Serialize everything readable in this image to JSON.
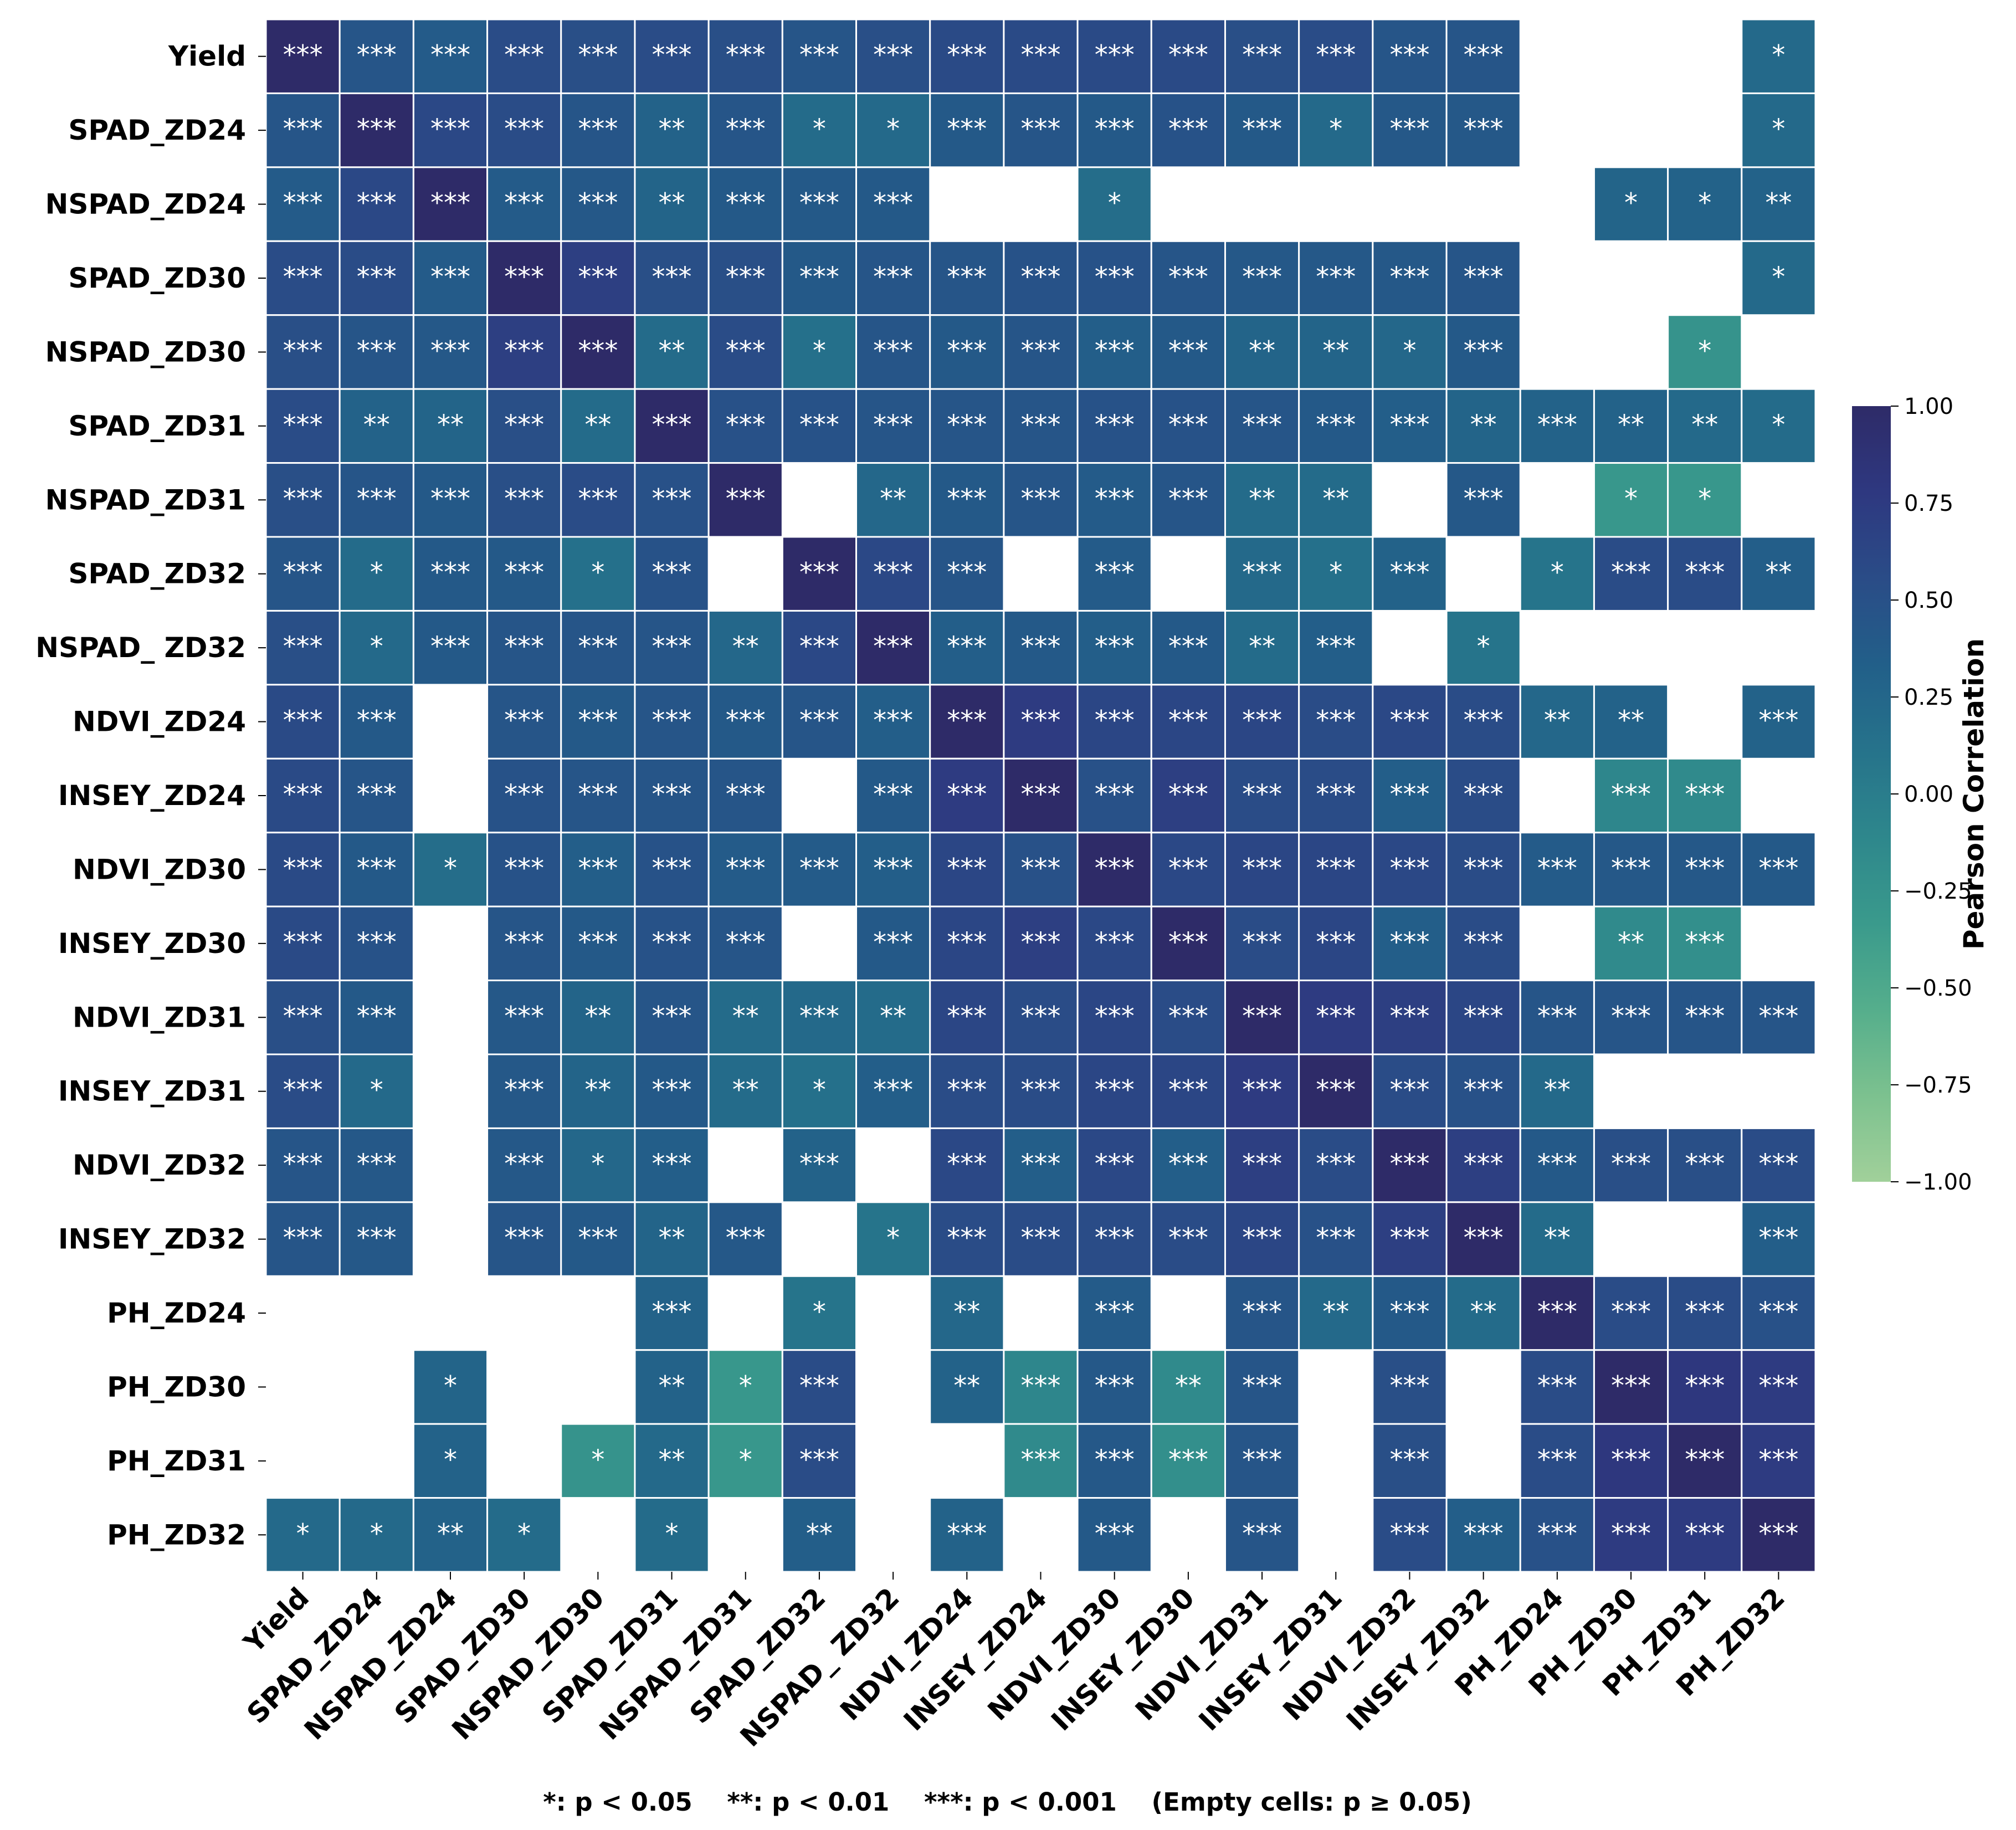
{
  "chart_data": {
    "type": "heatmap",
    "title": "",
    "xlabel": "",
    "ylabel": "",
    "labels": [
      "Yield",
      "SPAD_ZD24",
      "NSPAD_ZD24",
      "SPAD_ZD30",
      "NSPAD_ZD30",
      "SPAD_ZD31",
      "NSPAD_ZD31",
      "SPAD_ZD32",
      "NSPAD_ ZD32",
      "NDVI_ZD24",
      "INSEY_ZD24",
      "NDVI_ZD30",
      "INSEY_ZD30",
      "NDVI_ZD31",
      "INSEY_ZD31",
      "NDVI_ZD32",
      "INSEY_ZD32",
      "PH_ZD24",
      "PH_ZD30",
      "PH_ZD31",
      "PH_ZD32"
    ],
    "values": [
      [
        1.0,
        0.45,
        0.38,
        0.55,
        0.52,
        0.55,
        0.52,
        0.45,
        0.52,
        0.58,
        0.58,
        0.58,
        0.58,
        0.52,
        0.55,
        0.45,
        0.45,
        null,
        null,
        null,
        0.22
      ],
      [
        0.45,
        1.0,
        0.6,
        0.55,
        0.45,
        0.3,
        0.45,
        0.2,
        0.22,
        0.4,
        0.45,
        0.4,
        0.48,
        0.4,
        0.22,
        0.42,
        0.42,
        null,
        null,
        null,
        0.22
      ],
      [
        0.38,
        0.6,
        1.0,
        0.38,
        0.42,
        0.28,
        0.4,
        0.4,
        0.4,
        null,
        null,
        0.18,
        null,
        null,
        null,
        null,
        null,
        null,
        0.28,
        0.3,
        0.3
      ],
      [
        0.55,
        0.55,
        0.38,
        1.0,
        0.7,
        0.52,
        0.52,
        0.4,
        0.45,
        0.45,
        0.48,
        0.48,
        0.45,
        0.42,
        0.42,
        0.42,
        0.45,
        null,
        null,
        null,
        0.22
      ],
      [
        0.52,
        0.45,
        0.42,
        0.7,
        1.0,
        0.2,
        0.55,
        0.15,
        0.45,
        0.4,
        0.45,
        0.35,
        0.4,
        0.28,
        0.28,
        0.25,
        0.4,
        null,
        null,
        -0.25,
        null
      ],
      [
        0.55,
        0.3,
        0.28,
        0.52,
        0.2,
        1.0,
        0.5,
        0.48,
        0.45,
        0.45,
        0.45,
        0.48,
        0.48,
        0.45,
        0.4,
        0.35,
        0.28,
        0.3,
        0.3,
        0.22,
        0.2
      ],
      [
        0.52,
        0.45,
        0.4,
        0.52,
        0.55,
        0.5,
        1.0,
        null,
        0.25,
        0.4,
        0.45,
        0.38,
        0.45,
        0.2,
        0.2,
        null,
        0.42,
        null,
        -0.3,
        -0.3,
        null
      ],
      [
        0.45,
        0.2,
        0.4,
        0.4,
        0.15,
        0.48,
        null,
        1.0,
        0.6,
        0.45,
        null,
        0.38,
        null,
        0.22,
        0.15,
        0.3,
        null,
        0.1,
        0.55,
        0.55,
        0.35
      ],
      [
        0.52,
        0.22,
        0.4,
        0.45,
        0.45,
        0.45,
        0.25,
        0.6,
        1.0,
        0.35,
        0.4,
        0.35,
        0.4,
        0.2,
        0.35,
        null,
        0.1,
        null,
        null,
        null,
        null
      ],
      [
        0.58,
        0.4,
        null,
        0.45,
        0.4,
        0.45,
        0.4,
        0.45,
        0.35,
        1.0,
        0.75,
        0.62,
        0.62,
        0.62,
        0.55,
        0.6,
        0.55,
        0.25,
        0.3,
        null,
        0.3
      ],
      [
        0.58,
        0.45,
        null,
        0.48,
        0.45,
        0.45,
        0.45,
        null,
        0.4,
        0.75,
        1.0,
        0.5,
        0.7,
        0.55,
        0.55,
        0.35,
        0.55,
        null,
        -0.1,
        -0.15,
        null
      ],
      [
        0.58,
        0.4,
        0.18,
        0.48,
        0.35,
        0.48,
        0.38,
        0.38,
        0.35,
        0.62,
        0.5,
        1.0,
        0.6,
        0.62,
        0.62,
        0.6,
        0.55,
        0.38,
        0.42,
        0.42,
        0.4
      ],
      [
        0.58,
        0.48,
        null,
        0.45,
        0.4,
        0.48,
        0.45,
        null,
        0.4,
        0.62,
        0.7,
        0.6,
        1.0,
        0.55,
        0.62,
        0.35,
        0.55,
        null,
        -0.15,
        -0.2,
        null
      ],
      [
        0.52,
        0.4,
        null,
        0.42,
        0.28,
        0.45,
        0.2,
        0.22,
        0.2,
        0.62,
        0.55,
        0.62,
        0.55,
        1.0,
        0.75,
        0.7,
        0.62,
        0.45,
        0.45,
        0.45,
        0.45
      ],
      [
        0.55,
        0.22,
        null,
        0.42,
        0.28,
        0.4,
        0.2,
        0.15,
        0.35,
        0.55,
        0.55,
        0.62,
        0.62,
        0.75,
        1.0,
        0.55,
        0.5,
        0.22,
        null,
        null,
        null
      ],
      [
        0.45,
        0.42,
        null,
        0.42,
        0.25,
        0.35,
        null,
        0.3,
        null,
        0.6,
        0.35,
        0.6,
        0.35,
        0.7,
        0.55,
        1.0,
        0.7,
        0.4,
        0.52,
        0.52,
        0.55
      ],
      [
        0.45,
        0.42,
        null,
        0.45,
        0.4,
        0.28,
        0.42,
        null,
        0.1,
        0.55,
        0.55,
        0.55,
        0.55,
        0.62,
        0.5,
        0.7,
        1.0,
        0.2,
        null,
        null,
        0.35
      ],
      [
        null,
        null,
        null,
        null,
        null,
        0.3,
        null,
        0.1,
        null,
        0.25,
        null,
        0.38,
        null,
        0.45,
        0.22,
        0.4,
        0.2,
        1.0,
        0.55,
        0.55,
        0.5
      ],
      [
        null,
        null,
        0.28,
        null,
        null,
        0.3,
        -0.3,
        0.55,
        null,
        0.3,
        -0.1,
        0.42,
        -0.15,
        0.45,
        null,
        0.52,
        null,
        0.55,
        1.0,
        0.8,
        0.75
      ],
      [
        null,
        null,
        0.3,
        null,
        -0.25,
        0.22,
        -0.3,
        0.55,
        null,
        null,
        -0.15,
        0.42,
        -0.2,
        0.45,
        null,
        0.52,
        null,
        0.55,
        0.8,
        1.0,
        0.75
      ],
      [
        0.22,
        0.22,
        0.3,
        0.2,
        null,
        0.2,
        null,
        0.35,
        null,
        0.3,
        null,
        0.4,
        null,
        0.45,
        null,
        0.55,
        0.35,
        0.5,
        0.75,
        0.75,
        1.0
      ]
    ],
    "significance": [
      [
        "***",
        "***",
        "***",
        "***",
        "***",
        "***",
        "***",
        "***",
        "***",
        "***",
        "***",
        "***",
        "***",
        "***",
        "***",
        "***",
        "***",
        "",
        "",
        "",
        "*"
      ],
      [
        "***",
        "***",
        "***",
        "***",
        "***",
        "**",
        "***",
        "*",
        "*",
        "***",
        "***",
        "***",
        "***",
        "***",
        "*",
        "***",
        "***",
        "",
        "",
        "",
        "*"
      ],
      [
        "***",
        "***",
        "***",
        "***",
        "***",
        "**",
        "***",
        "***",
        "***",
        "",
        "",
        "*",
        "",
        "",
        "",
        "",
        "",
        "",
        "*",
        "*",
        "**"
      ],
      [
        "***",
        "***",
        "***",
        "***",
        "***",
        "***",
        "***",
        "***",
        "***",
        "***",
        "***",
        "***",
        "***",
        "***",
        "***",
        "***",
        "***",
        "",
        "",
        "",
        "*"
      ],
      [
        "***",
        "***",
        "***",
        "***",
        "***",
        "**",
        "***",
        "*",
        "***",
        "***",
        "***",
        "***",
        "***",
        "**",
        "**",
        "*",
        "***",
        "",
        "",
        "*",
        ""
      ],
      [
        "***",
        "**",
        "**",
        "***",
        "**",
        "***",
        "***",
        "***",
        "***",
        "***",
        "***",
        "***",
        "***",
        "***",
        "***",
        "***",
        "**",
        "***",
        "**",
        "**",
        "*"
      ],
      [
        "***",
        "***",
        "***",
        "***",
        "***",
        "***",
        "***",
        "",
        "**",
        "***",
        "***",
        "***",
        "***",
        "**",
        "**",
        "",
        "***",
        "",
        "*",
        "*",
        ""
      ],
      [
        "***",
        "*",
        "***",
        "***",
        "*",
        "***",
        "",
        "***",
        "***",
        "***",
        "",
        "***",
        "",
        "***",
        "*",
        "***",
        "",
        "*",
        "***",
        "***",
        "**"
      ],
      [
        "***",
        "*",
        "***",
        "***",
        "***",
        "***",
        "**",
        "***",
        "***",
        "***",
        "***",
        "***",
        "***",
        "**",
        "***",
        "",
        "*",
        "",
        "",
        "",
        ""
      ],
      [
        "***",
        "***",
        "",
        "***",
        "***",
        "***",
        "***",
        "***",
        "***",
        "***",
        "***",
        "***",
        "***",
        "***",
        "***",
        "***",
        "***",
        "**",
        "**",
        "",
        "***"
      ],
      [
        "***",
        "***",
        "",
        "***",
        "***",
        "***",
        "***",
        "",
        "***",
        "***",
        "***",
        "***",
        "***",
        "***",
        "***",
        "***",
        "***",
        "",
        "***",
        "***",
        ""
      ],
      [
        "***",
        "***",
        "*",
        "***",
        "***",
        "***",
        "***",
        "***",
        "***",
        "***",
        "***",
        "***",
        "***",
        "***",
        "***",
        "***",
        "***",
        "***",
        "***",
        "***",
        "***"
      ],
      [
        "***",
        "***",
        "",
        "***",
        "***",
        "***",
        "***",
        "",
        "***",
        "***",
        "***",
        "***",
        "***",
        "***",
        "***",
        "***",
        "***",
        "",
        "**",
        "***",
        ""
      ],
      [
        "***",
        "***",
        "",
        "***",
        "**",
        "***",
        "**",
        "***",
        "**",
        "***",
        "***",
        "***",
        "***",
        "***",
        "***",
        "***",
        "***",
        "***",
        "***",
        "***",
        "***"
      ],
      [
        "***",
        "*",
        "",
        "***",
        "**",
        "***",
        "**",
        "*",
        "***",
        "***",
        "***",
        "***",
        "***",
        "***",
        "***",
        "***",
        "***",
        "**",
        "",
        "",
        ""
      ],
      [
        "***",
        "***",
        "",
        "***",
        "*",
        "***",
        "",
        "***",
        "",
        "***",
        "***",
        "***",
        "***",
        "***",
        "***",
        "***",
        "***",
        "***",
        "***",
        "***",
        "***"
      ],
      [
        "***",
        "***",
        "",
        "***",
        "***",
        "**",
        "***",
        "",
        "*",
        "***",
        "***",
        "***",
        "***",
        "***",
        "***",
        "***",
        "***",
        "**",
        "",
        "",
        "***"
      ],
      [
        "",
        "",
        "",
        "",
        "",
        "***",
        "",
        "*",
        "",
        "**",
        "",
        "***",
        "",
        "***",
        "**",
        "***",
        "**",
        "***",
        "***",
        "***",
        "***"
      ],
      [
        "",
        "",
        "*",
        "",
        "",
        "**",
        "*",
        "***",
        "",
        "**",
        "***",
        "***",
        "**",
        "***",
        "",
        "***",
        "",
        "***",
        "***",
        "***",
        "***"
      ],
      [
        "",
        "",
        "*",
        "",
        "*",
        "**",
        "*",
        "***",
        "",
        "",
        "***",
        "***",
        "***",
        "***",
        "",
        "***",
        "",
        "***",
        "***",
        "***",
        "***"
      ],
      [
        "*",
        "*",
        "**",
        "*",
        "",
        "*",
        "",
        "**",
        "",
        "***",
        "",
        "***",
        "",
        "***",
        "",
        "***",
        "***",
        "***",
        "***",
        "***",
        "***"
      ]
    ],
    "colorbar": {
      "label": "Pearson Correlation",
      "min": -1.0,
      "max": 1.0,
      "ticks": [
        "1.00",
        "0.75",
        "0.50",
        "0.25",
        "0.00",
        "−0.25",
        "−0.50",
        "−0.75",
        "−1.00"
      ],
      "colormap": [
        "#a1d09a",
        "#7cc18f",
        "#55ae8c",
        "#3a9a8c",
        "#2e878c",
        "#26738b",
        "#225f89",
        "#2a4c87",
        "#2e3880",
        "#2e2b68"
      ]
    },
    "footnote": "*: p < 0.05    **: p < 0.01    ***: p < 0.001    (Empty cells: p ≥ 0.05)"
  }
}
